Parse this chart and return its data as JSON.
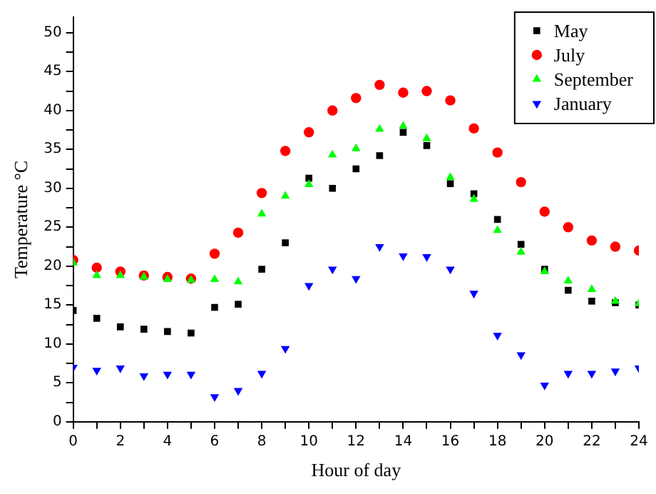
{
  "chart_data": {
    "type": "scatter",
    "xlabel": "Hour of day",
    "ylabel": "Temperature °C",
    "x": [
      0,
      1,
      2,
      3,
      4,
      5,
      6,
      7,
      8,
      9,
      10,
      11,
      12,
      13,
      14,
      15,
      16,
      17,
      18,
      19,
      20,
      21,
      22,
      23,
      24
    ],
    "series": [
      {
        "name": "May",
        "color": "#000000",
        "marker": "square",
        "values": [
          14.3,
          13.3,
          12.2,
          11.9,
          11.6,
          11.4,
          14.7,
          15.1,
          19.6,
          23,
          31.3,
          30,
          32.5,
          34.2,
          37.2,
          35.5,
          30.6,
          29.3,
          26,
          22.8,
          19.6,
          16.9,
          15.5,
          15.3,
          15
        ]
      },
      {
        "name": "July",
        "color": "#ff0000",
        "marker": "circle",
        "values": [
          20.8,
          19.8,
          19.3,
          18.8,
          18.6,
          18.4,
          21.6,
          24.3,
          29.4,
          34.8,
          37.2,
          40,
          41.6,
          43.3,
          42.3,
          42.5,
          41.3,
          37.7,
          34.6,
          30.8,
          27,
          25,
          23.3,
          22.5,
          22
        ]
      },
      {
        "name": "September",
        "color": "#00ff00",
        "marker": "triangle",
        "values": [
          20.4,
          18.8,
          18.8,
          18.6,
          18.3,
          18.2,
          18.3,
          18,
          26.7,
          29,
          30.5,
          34.3,
          35.1,
          37.6,
          38,
          36.4,
          31.4,
          28.6,
          24.6,
          21.8,
          19.3,
          18.1,
          17,
          15.5,
          15.2
        ]
      },
      {
        "name": "January",
        "color": "#0000ff",
        "marker": "triangle-down",
        "values": [
          7,
          6.6,
          6.9,
          5.9,
          6.1,
          6.1,
          3.2,
          4,
          6.2,
          9.4,
          17.5,
          19.6,
          18.4,
          22.5,
          21.3,
          21.2,
          19.6,
          16.5,
          11.1,
          8.6,
          4.7,
          6.2,
          6.2,
          6.5,
          6.9
        ]
      }
    ],
    "xlim": [
      0,
      24
    ],
    "xticks": [
      0,
      {
        "value": 1,
        "label": null
      },
      2,
      {
        "value": 3,
        "label": null
      },
      4,
      {
        "value": 5,
        "label": null
      },
      6,
      {
        "value": 7,
        "label": null
      },
      8,
      {
        "value": 9,
        "label": null
      },
      10,
      {
        "value": 11,
        "label": null
      },
      12,
      {
        "value": 13,
        "label": null
      },
      14,
      {
        "value": 15,
        "label": null
      },
      16,
      {
        "value": 17,
        "label": null
      },
      18,
      {
        "value": 19,
        "label": null
      },
      20,
      {
        "value": 21,
        "label": null
      },
      22,
      {
        "value": 23,
        "label": null
      },
      24
    ],
    "ylim": [
      0,
      52
    ],
    "yticks": [
      0,
      {
        "value": 2.5,
        "label": null
      },
      5,
      {
        "value": 7.5,
        "label": null
      },
      10,
      {
        "value": 12.5,
        "label": null
      },
      15,
      {
        "value": 17.5,
        "label": null
      },
      20,
      {
        "value": 22.5,
        "label": null
      },
      25,
      {
        "value": 27.5,
        "label": null
      },
      30,
      {
        "value": 32.5,
        "label": null
      },
      35,
      {
        "value": 37.5,
        "label": null
      },
      40,
      {
        "value": 42.5,
        "label": null
      },
      45,
      {
        "value": 47.5,
        "label": null
      },
      50
    ],
    "grid": false,
    "legend": "top right"
  }
}
